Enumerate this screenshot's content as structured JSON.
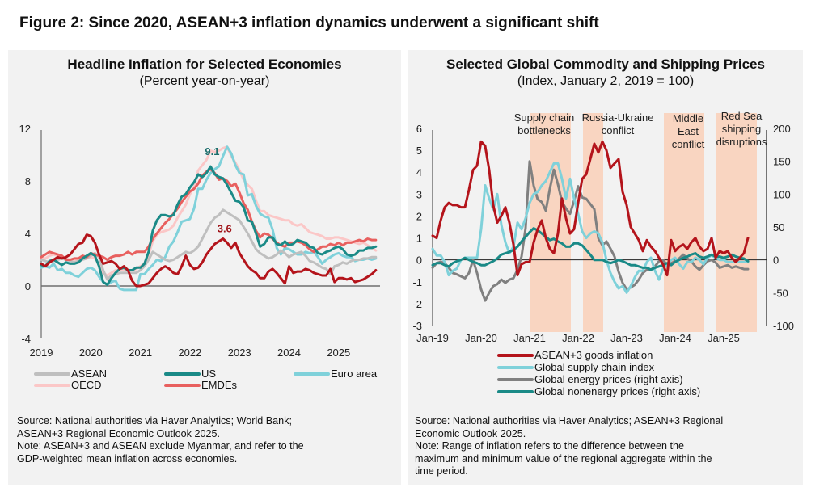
{
  "figure_title": "Figure 2: Since 2020, ASEAN+3 inflation dynamics underwent a significant shift",
  "left_panel": {
    "title": "Headline Inflation for Selected Economies",
    "subtitle": "(Percent year-on-year)",
    "source": "Source: National authorities via Haver Analytics; World Bank; ASEAN+3 Regional Economic Outlook 2025.",
    "source_lines": [
      "Source: National authorities via Haver Analytics; World Bank;",
      "ASEAN+3 Regional Economic Outlook 2025."
    ],
    "note_lines": [
      "Note: ASEAN+3 and ASEAN exclude Myanmar, and refer to the",
      "GDP-weighted mean inflation across economies."
    ]
  },
  "right_panel": {
    "title": "Selected Global Commodity and Shipping Prices",
    "subtitle": "(Index, January 2, 2019 = 100)",
    "source_lines": [
      "Source: National authorities via Haver Analytics; ASEAN+3 Regional",
      "Economic Outlook 2025."
    ],
    "note_lines": [
      "Note: Range of inflation refers to the difference between the",
      "maximum and minimum value of the regional aggregate within the",
      "time period."
    ]
  },
  "chart_data": [
    {
      "type": "line",
      "title": "Headline Inflation for Selected Economies",
      "subtitle": "(Percent year-on-year)",
      "xlabel": "",
      "ylabel": "Percent year-on-year",
      "x_start": "2019-01",
      "x_frequency": "monthly",
      "x_ticks": [
        "2019",
        "2020",
        "2021",
        "2022",
        "2023",
        "2024",
        "2025"
      ],
      "ylim": [
        -4,
        12
      ],
      "y_ticks": [
        -4,
        0,
        4,
        8,
        12
      ],
      "grid": false,
      "legend_position": "bottom",
      "annotations": [
        {
          "text": "9.1",
          "series": "US",
          "x": "2022-06",
          "y": 9.1
        },
        {
          "text": "3.6",
          "series": "ASEAN+3",
          "x": "2022-09",
          "y": 3.6
        }
      ],
      "series": [
        {
          "name": "ASEAN",
          "color": "#bfbfbf",
          "in_legend": true,
          "values": [
            2.0,
            1.9,
            1.8,
            1.9,
            2.0,
            2.1,
            2.0,
            1.9,
            1.8,
            1.9,
            2.0,
            2.1,
            2.3,
            2.5,
            2.2,
            1.2,
            0.5,
            0.8,
            0.9,
            1.0,
            1.0,
            1.0,
            1.0,
            1.0,
            1.2,
            1.5,
            2.0,
            2.6,
            2.4,
            2.2,
            2.0,
            1.9,
            2.0,
            2.2,
            2.4,
            2.6,
            2.5,
            2.7,
            3.0,
            3.6,
            4.2,
            4.8,
            5.2,
            5.4,
            5.8,
            5.6,
            5.4,
            5.2,
            5.0,
            4.5,
            4.0,
            3.4,
            2.8,
            2.5,
            2.3,
            2.1,
            2.2,
            2.4,
            2.7,
            2.5,
            2.2,
            2.4,
            2.5,
            2.6,
            2.3,
            1.9,
            1.8,
            1.6,
            1.4,
            1.3,
            0.9,
            1.5,
            1.6,
            1.8,
            1.7,
            1.9,
            2.0,
            2.0,
            2.1,
            2.1,
            2.2,
            2.2
          ]
        },
        {
          "name": "US",
          "color": "#1a8a87",
          "in_legend": true,
          "values": [
            1.6,
            1.5,
            1.9,
            2.0,
            1.8,
            1.6,
            1.8,
            1.7,
            1.7,
            1.8,
            2.1,
            2.3,
            2.5,
            2.3,
            1.5,
            0.3,
            0.1,
            0.6,
            1.0,
            1.3,
            1.4,
            1.2,
            1.2,
            1.4,
            1.4,
            1.7,
            2.6,
            4.2,
            5.0,
            5.4,
            5.4,
            5.3,
            5.4,
            6.2,
            6.8,
            7.0,
            7.5,
            7.9,
            8.5,
            8.3,
            8.6,
            9.1,
            8.5,
            8.3,
            8.2,
            7.7,
            7.1,
            6.5,
            6.4,
            6.0,
            5.0,
            4.9,
            4.0,
            3.0,
            3.2,
            3.7,
            3.7,
            3.2,
            3.1,
            3.4,
            3.1,
            3.2,
            3.5,
            3.4,
            3.3,
            3.0,
            2.9,
            2.5,
            2.4,
            2.6,
            2.7,
            2.9,
            3.0,
            2.8,
            2.4,
            2.3,
            2.4,
            2.7,
            2.7,
            2.9,
            2.9,
            3.0
          ]
        },
        {
          "name": "Euro area",
          "color": "#7fd1da",
          "in_legend": true,
          "values": [
            1.4,
            1.5,
            1.4,
            1.7,
            1.2,
            1.3,
            1.0,
            1.0,
            0.8,
            0.7,
            1.0,
            1.3,
            1.4,
            1.2,
            0.7,
            0.3,
            0.1,
            0.3,
            0.4,
            -0.2,
            -0.3,
            -0.3,
            -0.3,
            -0.3,
            0.9,
            0.9,
            1.3,
            1.6,
            2.0,
            1.9,
            2.2,
            3.0,
            3.4,
            4.1,
            4.9,
            5.0,
            5.1,
            5.9,
            7.4,
            7.4,
            8.1,
            8.6,
            8.9,
            9.1,
            9.9,
            10.6,
            10.1,
            9.2,
            8.6,
            8.5,
            6.9,
            7.0,
            6.1,
            5.5,
            5.3,
            5.2,
            4.3,
            2.9,
            2.4,
            2.9,
            2.8,
            2.6,
            2.4,
            2.4,
            2.6,
            2.5,
            2.6,
            2.2,
            1.7,
            2.0,
            2.2,
            2.4,
            2.5,
            2.3,
            2.2,
            2.2,
            1.9,
            2.0,
            2.0,
            2.1,
            2.0,
            2.1
          ]
        },
        {
          "name": "OECD",
          "color": "#fbc7c7",
          "in_legend": true,
          "values": [
            2.1,
            2.1,
            2.3,
            2.4,
            2.3,
            2.1,
            2.1,
            2.0,
            1.9,
            2.0,
            2.1,
            2.1,
            2.2,
            2.1,
            1.7,
            1.0,
            0.8,
            1.0,
            1.2,
            1.2,
            1.3,
            1.2,
            1.2,
            1.3,
            1.5,
            1.7,
            2.4,
            3.4,
            3.9,
            4.1,
            4.2,
            4.3,
            4.6,
            5.2,
            5.7,
            6.2,
            7.0,
            7.5,
            8.8,
            9.2,
            9.6,
            10.3,
            10.2,
            10.3,
            10.5,
            10.6,
            9.9,
            9.4,
            8.8,
            8.1,
            7.7,
            7.4,
            6.5,
            5.7,
            5.7,
            5.4,
            5.3,
            5.2,
            5.1,
            5.0,
            5.0,
            4.7,
            4.6,
            4.7,
            4.4,
            4.1,
            4.0,
            3.9,
            3.8,
            3.6,
            3.6,
            3.7,
            3.7,
            3.6,
            3.5,
            3.4,
            3.3,
            3.2,
            3.3,
            3.1,
            2.9,
            2.7
          ]
        },
        {
          "name": "EMDEs",
          "color": "#e8605f",
          "in_legend": true,
          "values": [
            2.2,
            2.4,
            2.6,
            2.5,
            2.4,
            2.3,
            2.0,
            2.0,
            2.1,
            2.1,
            2.3,
            2.2,
            2.5,
            2.4,
            2.3,
            2.2,
            2.0,
            2.2,
            2.3,
            2.3,
            2.4,
            2.6,
            2.4,
            2.6,
            2.6,
            2.6,
            3.0,
            3.6,
            4.0,
            4.4,
            4.8,
            5.1,
            5.5,
            5.9,
            6.4,
            6.8,
            7.2,
            7.4,
            7.8,
            8.4,
            8.7,
            8.9,
            8.6,
            8.1,
            8.2,
            8.0,
            7.6,
            7.8,
            7.1,
            6.3,
            5.8,
            4.9,
            4.2,
            3.7,
            4.0,
            3.9,
            3.6,
            3.3,
            3.1,
            3.0,
            3.3,
            3.3,
            3.4,
            3.3,
            3.1,
            2.8,
            2.6,
            2.8,
            3.0,
            3.0,
            3.2,
            3.1,
            3.3,
            3.1,
            3.3,
            3.3,
            3.4,
            3.5,
            3.4,
            3.6,
            3.5,
            3.5
          ]
        },
        {
          "name": "ASEAN+3",
          "color": "#b4141b",
          "in_legend": false,
          "values": [
            1.7,
            1.5,
            1.8,
            2.0,
            2.2,
            2.1,
            2.2,
            2.4,
            2.8,
            3.2,
            3.3,
            3.9,
            3.8,
            3.3,
            2.4,
            1.7,
            1.8,
            1.9,
            1.7,
            1.3,
            1.5,
            1.2,
            0.4,
            0.0,
            0.0,
            0.1,
            0.2,
            0.6,
            1.0,
            1.3,
            1.5,
            1.3,
            1.0,
            0.9,
            1.5,
            2.3,
            1.6,
            1.3,
            1.4,
            1.8,
            2.4,
            2.8,
            3.2,
            3.4,
            3.6,
            3.3,
            2.9,
            3.3,
            2.5,
            2.0,
            1.5,
            1.2,
            1.0,
            0.6,
            0.6,
            1.1,
            1.3,
            1.0,
            0.6,
            0.2,
            1.5,
            1.0,
            1.1,
            1.1,
            1.3,
            1.2,
            1.0,
            0.9,
            0.8,
            0.8,
            1.3,
            0.3,
            0.6,
            0.6,
            0.5,
            0.6,
            0.3,
            0.4,
            0.5,
            0.7,
            0.9,
            1.2
          ]
        }
      ]
    },
    {
      "type": "line",
      "title": "Selected Global Commodity and Shipping Prices",
      "subtitle": "(Index, January 2, 2019 = 100)",
      "xlabel": "",
      "ylabel_left": "",
      "ylabel_right": "",
      "x_start": "2019-01",
      "x_frequency": "monthly",
      "x_ticks": [
        "Jan-19",
        "Jan-20",
        "Jan-21",
        "Jan-22",
        "Jan-23",
        "Jan-24",
        "Jan-25"
      ],
      "ylim_left": [
        -3,
        6
      ],
      "y_ticks_left": [
        -3,
        -2,
        -1,
        0,
        1,
        2,
        3,
        4,
        5,
        6
      ],
      "ylim_right": [
        -100,
        200
      ],
      "y_ticks_right": [
        -100,
        -50,
        0,
        50,
        100,
        150,
        200
      ],
      "grid": false,
      "legend_position": "bottom",
      "shaded_periods": [
        {
          "label": "Supply chain bottlenecks",
          "label_lines": [
            "Supply chain",
            "bottlenecks"
          ],
          "start": "2021-01",
          "end": "2021-11",
          "color": "#f9d5c1"
        },
        {
          "label": "Russia-Ukraine conflict",
          "label_lines": [
            "Russia-Ukraine",
            "conflict"
          ],
          "start": "2022-02",
          "end": "2022-07",
          "color": "#f9d5c1"
        },
        {
          "label": "Middle East conflict",
          "label_lines": [
            "Middle",
            "East",
            "conflict"
          ],
          "start": "2023-10",
          "end": "2024-08",
          "color": "#f9d5c1"
        },
        {
          "label": "Red Sea shipping disruptions",
          "label_lines": [
            "Red Sea",
            "shipping",
            "disruptions"
          ],
          "start": "2024-11",
          "end": "2025-09",
          "color": "#f9d5c1"
        }
      ],
      "series": [
        {
          "name": "ASEAN+3 goods inflation",
          "color": "#b4141b",
          "axis": "left",
          "values": [
            1.1,
            1.0,
            1.8,
            2.4,
            2.6,
            2.5,
            2.5,
            2.4,
            2.4,
            3.2,
            4.1,
            4.3,
            5.4,
            5.2,
            4.1,
            2.5,
            1.7,
            2.0,
            2.4,
            1.7,
            0.7,
            -0.7,
            -0.2,
            -0.1,
            -0.1,
            0.8,
            1.4,
            1.8,
            1.0,
            0.5,
            0.3,
            1.2,
            2.8,
            1.9,
            1.2,
            1.4,
            2.6,
            3.7,
            3.9,
            4.6,
            5.3,
            4.9,
            5.4,
            5.0,
            4.2,
            4.4,
            4.6,
            3.1,
            2.5,
            1.5,
            1.2,
            0.9,
            0.4,
            0.9,
            0.6,
            0.4,
            0.1,
            -0.2,
            -0.7,
            0.9,
            0.4,
            0.6,
            0.7,
            0.5,
            0.8,
            1.0,
            0.6,
            0.4,
            0.5,
            1.0,
            0.1,
            0.4,
            0.3,
            0.4,
            0.1,
            -0.1,
            0.1,
            0.3,
            1.0
          ]
        },
        {
          "name": "Global supply chain index",
          "color": "#7fd1da",
          "axis": "left",
          "values": [
            0.5,
            0.2,
            0.2,
            -0.1,
            -0.7,
            -0.5,
            -0.4,
            0.0,
            0.1,
            0.1,
            0.1,
            0.1,
            1.4,
            3.4,
            2.8,
            2.3,
            3.0,
            1.6,
            0.8,
            0.3,
            0.6,
            1.7,
            1.4,
            1.9,
            2.6,
            3.0,
            3.1,
            3.4,
            3.6,
            4.0,
            4.4,
            4.4,
            3.7,
            2.8,
            3.7,
            2.8,
            2.1,
            1.3,
            1.0,
            1.2,
            1.3,
            1.2,
            0.8,
            0.0,
            -0.6,
            -1.0,
            -1.3,
            -1.2,
            -1.5,
            -1.2,
            -0.8,
            -0.5,
            -0.5,
            -0.1,
            0.1,
            -0.5,
            -0.9,
            -0.4,
            -0.2,
            0.0,
            0.1,
            -0.2,
            -0.4,
            -0.1,
            -0.1,
            0.1,
            0.0,
            -0.2,
            0.1,
            0.2,
            0.1,
            0.0,
            0.0,
            -0.1,
            -0.1,
            -0.1,
            -0.1,
            -0.1,
            -0.1
          ]
        },
        {
          "name": "Global energy prices (right axis)",
          "color": "#808080",
          "axis": "right",
          "values": [
            -12,
            -5,
            -3,
            -5,
            -12,
            -20,
            -22,
            -25,
            -28,
            -20,
            0,
            -20,
            -45,
            -62,
            -50,
            -40,
            -37,
            -30,
            -35,
            -30,
            -28,
            -15,
            5,
            48,
            150,
            113,
            92,
            88,
            75,
            108,
            137,
            115,
            88,
            78,
            70,
            90,
            112,
            95,
            93,
            85,
            77,
            33,
            22,
            28,
            17,
            5,
            -18,
            -35,
            -45,
            -42,
            -38,
            -30,
            -20,
            -15,
            -15,
            -10,
            -2,
            0,
            -8,
            -5,
            -2,
            2,
            8,
            2,
            -2,
            -10,
            -15,
            -8,
            -2,
            0,
            -4,
            -12,
            -10,
            -8,
            -12,
            -10,
            -12,
            -14,
            -14
          ]
        },
        {
          "name": "Global nonenergy prices (right axis)",
          "color": "#1a8a87",
          "axis": "right",
          "values": [
            -8,
            -5,
            -5,
            -8,
            -10,
            -5,
            -2,
            0,
            3,
            0,
            -3,
            -5,
            -8,
            -8,
            -5,
            -2,
            2,
            8,
            10,
            12,
            15,
            20,
            28,
            35,
            42,
            48,
            45,
            40,
            35,
            30,
            32,
            28,
            25,
            20,
            20,
            25,
            25,
            22,
            15,
            8,
            0,
            0,
            0,
            -3,
            -5,
            -3,
            0,
            -2,
            -5,
            -8,
            -8,
            -10,
            -12,
            -12,
            -15,
            -12,
            -10,
            -8,
            -5,
            -8,
            -3,
            0,
            3,
            5,
            8,
            10,
            5,
            3,
            5,
            8,
            5,
            5,
            3,
            5,
            8,
            5,
            3,
            2,
            -2
          ]
        }
      ]
    }
  ],
  "legends": {
    "left": [
      {
        "label": "ASEAN",
        "color": "#bfbfbf"
      },
      {
        "label": "US",
        "color": "#1a8a87"
      },
      {
        "label": "Euro area",
        "color": "#7fd1da"
      },
      {
        "label": "OECD",
        "color": "#fbc7c7"
      },
      {
        "label": "EMDEs",
        "color": "#e8605f"
      }
    ],
    "right": [
      {
        "label": "ASEAN+3 goods inflation",
        "color": "#b4141b"
      },
      {
        "label": "Global supply chain index",
        "color": "#7fd1da"
      },
      {
        "label": "Global energy prices (right axis)",
        "color": "#808080"
      },
      {
        "label": "Global nonenergy prices (right axis)",
        "color": "#1a8a87"
      }
    ]
  }
}
